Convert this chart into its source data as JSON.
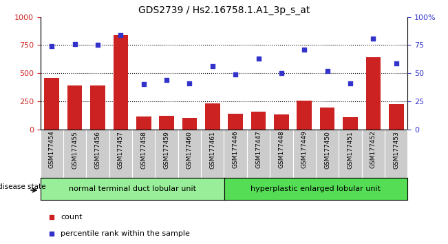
{
  "title": "GDS2739 / Hs2.16758.1.A1_3p_s_at",
  "categories": [
    "GSM177454",
    "GSM177455",
    "GSM177456",
    "GSM177457",
    "GSM177458",
    "GSM177459",
    "GSM177460",
    "GSM177461",
    "GSM177446",
    "GSM177447",
    "GSM177448",
    "GSM177449",
    "GSM177450",
    "GSM177451",
    "GSM177452",
    "GSM177453"
  ],
  "bar_values": [
    460,
    390,
    390,
    840,
    115,
    120,
    105,
    230,
    140,
    160,
    130,
    255,
    195,
    110,
    640,
    225
  ],
  "scatter_values": [
    74,
    76,
    75,
    84,
    40,
    44,
    41,
    56,
    49,
    63,
    50,
    71,
    52,
    41,
    81,
    59
  ],
  "bar_color": "#cc2222",
  "scatter_color": "#3333cc",
  "ylim_left": [
    0,
    1000
  ],
  "ylim_right": [
    0,
    100
  ],
  "yticks_left": [
    0,
    250,
    500,
    750,
    1000
  ],
  "yticks_right": [
    0,
    25,
    50,
    75,
    100
  ],
  "ytick_labels_right": [
    "0",
    "25",
    "50",
    "75",
    "100%"
  ],
  "group1_label": "normal terminal duct lobular unit",
  "group2_label": "hyperplastic enlarged lobular unit",
  "group1_count": 8,
  "group2_count": 8,
  "disease_state_label": "disease state",
  "legend_bar_label": "count",
  "legend_scatter_label": "percentile rank within the sample",
  "group1_color": "#99ee99",
  "group2_color": "#55dd55",
  "bar_width": 0.65,
  "background_color": "#ffffff",
  "xticklabel_bg": "#cccccc",
  "grid_color": "#000000",
  "title_fontsize": 10
}
